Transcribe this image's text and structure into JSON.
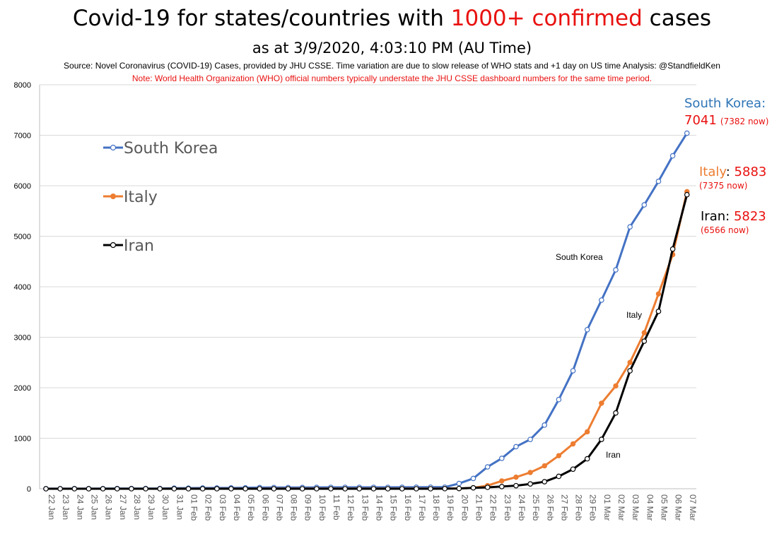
{
  "header": {
    "title_prefix": "Covid-19 for states/countries with ",
    "title_highlight": "1000+ confirmed",
    "title_suffix": " cases",
    "subtitle": "as at 3/9/2020, 4:03:10 PM (AU Time)",
    "source": "Source: Novel Coronavirus (COVID-19) Cases, provided by JHU CSSE.  Time variation are due to slow release of WHO stats and +1 day on US time  Analysis: @StandfieldKen",
    "note": "Note:  World Health Organization (WHO) official numbers  typically understate the JHU CSSE dashboard numbers for the same time period."
  },
  "annotations": {
    "south_korea": {
      "name": "South Korea:",
      "value": "7041",
      "now": "(7382 now)"
    },
    "italy": {
      "name": "Italy",
      "sep": ": ",
      "value": "5883",
      "now": "(7375 now)"
    },
    "iran": {
      "name": "Iran: ",
      "value": "5823",
      "now": "(6566 now)"
    }
  },
  "colors": {
    "south_korea": "#4472c4",
    "italy": "#ed7d31",
    "iran": "#000000",
    "highlight": "#e8110f",
    "sk_annotation": "#2e75b6",
    "grid": "#d9d9d9"
  },
  "chart_data": {
    "type": "line",
    "ylim": [
      0,
      8000
    ],
    "yticks": [
      "0",
      "1000",
      "2000",
      "3000",
      "4000",
      "5000",
      "6000",
      "7000",
      "8000"
    ],
    "grid": true,
    "legend_position": "left",
    "categories": [
      "22 Jan",
      "23 Jan",
      "24 Jan",
      "25 Jan",
      "26 Jan",
      "27 Jan",
      "28 Jan",
      "29 Jan",
      "30 Jan",
      "31 Jan",
      "01 Feb",
      "02 Feb",
      "03 Feb",
      "04 Feb",
      "05 Feb",
      "06 Feb",
      "07 Feb",
      "08 Feb",
      "09 Feb",
      "10 Feb",
      "11 Feb",
      "12 Feb",
      "13 Feb",
      "14 Feb",
      "15 Feb",
      "16 Feb",
      "17 Feb",
      "18 Feb",
      "19 Feb",
      "20 Feb",
      "21 Feb",
      "22 Feb",
      "23 Feb",
      "24 Feb",
      "25 Feb",
      "26 Feb",
      "27 Feb",
      "28 Feb",
      "29 Feb",
      "01 Mar",
      "02 Mar",
      "03 Mar",
      "04 Mar",
      "05 Mar",
      "06 Mar",
      "07 Mar"
    ],
    "series": [
      {
        "name": "South Korea",
        "values": [
          1,
          1,
          2,
          2,
          3,
          4,
          4,
          4,
          4,
          11,
          12,
          15,
          15,
          16,
          19,
          23,
          24,
          24,
          25,
          27,
          28,
          28,
          28,
          28,
          28,
          29,
          30,
          31,
          31,
          104,
          204,
          433,
          602,
          833,
          977,
          1261,
          1766,
          2337,
          3150,
          3736,
          4335,
          5186,
          5621,
          6088,
          6593,
          7041
        ]
      },
      {
        "name": "Italy",
        "values": [
          0,
          0,
          0,
          0,
          0,
          0,
          0,
          0,
          0,
          2,
          2,
          2,
          2,
          2,
          2,
          2,
          3,
          3,
          3,
          3,
          3,
          3,
          3,
          3,
          3,
          3,
          3,
          3,
          3,
          3,
          20,
          62,
          155,
          229,
          322,
          453,
          655,
          888,
          1128,
          1694,
          2036,
          2502,
          3089,
          3858,
          4636,
          5883
        ]
      },
      {
        "name": "Iran",
        "values": [
          0,
          0,
          0,
          0,
          0,
          0,
          0,
          0,
          0,
          0,
          0,
          0,
          0,
          0,
          0,
          0,
          0,
          0,
          0,
          0,
          0,
          0,
          0,
          0,
          0,
          0,
          0,
          0,
          2,
          5,
          18,
          28,
          43,
          61,
          95,
          139,
          245,
          388,
          593,
          978,
          1501,
          2336,
          2922,
          3513,
          4747,
          5823
        ]
      }
    ],
    "inline_labels": [
      "South Korea",
      "Italy",
      "Iran"
    ]
  }
}
